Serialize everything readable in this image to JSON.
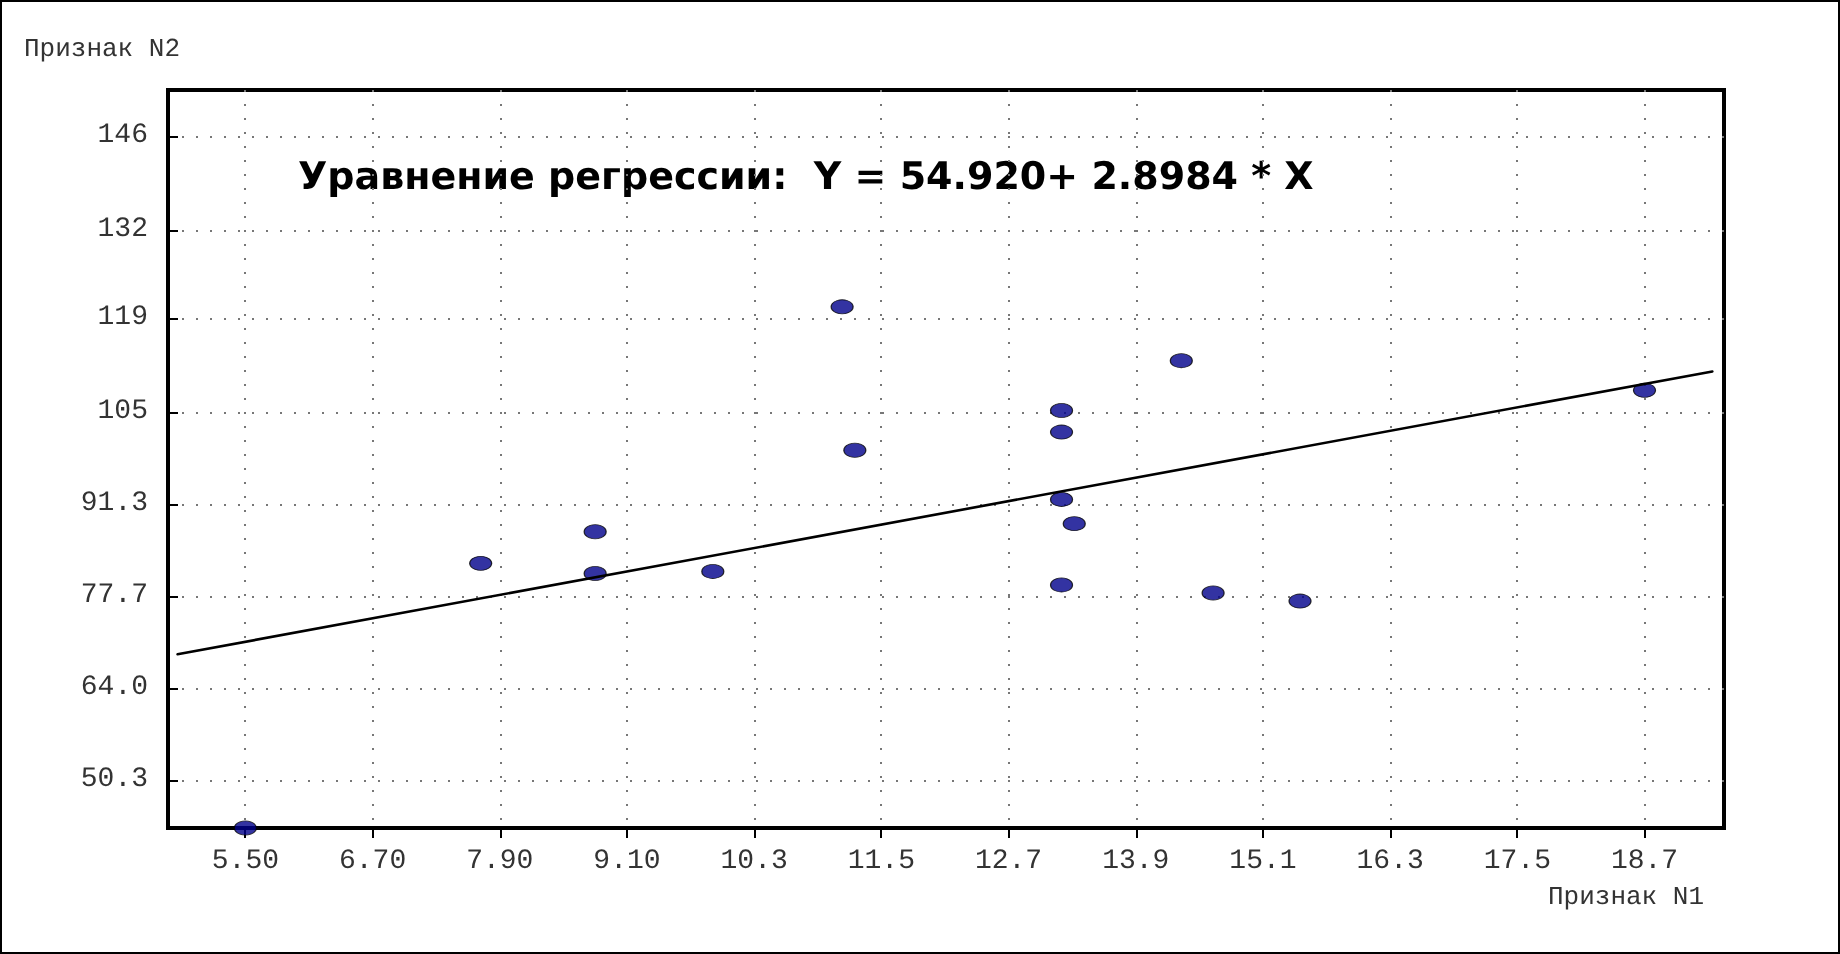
{
  "chart_data": {
    "type": "scatter",
    "xlabel": "Признак N1",
    "ylabel": "Признак N2",
    "annotations": [
      "Уравнение регрессии:  Y = 54.920+ 2.8984 * X"
    ],
    "x": [
      5.5,
      7.72,
      8.8,
      8.8,
      9.91,
      11.13,
      11.25,
      13.2,
      13.2,
      13.2,
      13.32,
      13.2,
      14.33,
      14.63,
      15.45,
      18.7
    ],
    "series": [
      {
        "color": "#00008b",
        "marker": "circle",
        "values": [
          43.2,
          82.5,
          87.2,
          81.0,
          81.3,
          120.6,
          99.3,
          105.2,
          102.0,
          92.0,
          88.4,
          79.3,
          112.6,
          78.1,
          76.9,
          108.2
        ]
      },
      {
        "type": "line",
        "color": "#000000",
        "marker": "none",
        "line_style": "solid",
        "x": [
          4.86,
          19.34
        ],
        "values": [
          69.0,
          111.0
        ]
      }
    ],
    "xlim": [
      4.77,
      19.45
    ],
    "ylim": [
      43.2,
      152.8
    ],
    "xticks": [
      {
        "value": 5.5,
        "label": "5.50"
      },
      {
        "value": 6.7,
        "label": "6.70"
      },
      {
        "value": 7.9,
        "label": "7.90"
      },
      {
        "value": 9.1,
        "label": "9.10"
      },
      10.3,
      11.5,
      12.7,
      13.9,
      15.1,
      16.3,
      17.5,
      18.7
    ],
    "yticks": [
      50.3,
      {
        "value": 64,
        "label": "64.0"
      },
      77.7,
      91.3,
      105,
      119,
      132,
      146
    ],
    "grid": true
  }
}
